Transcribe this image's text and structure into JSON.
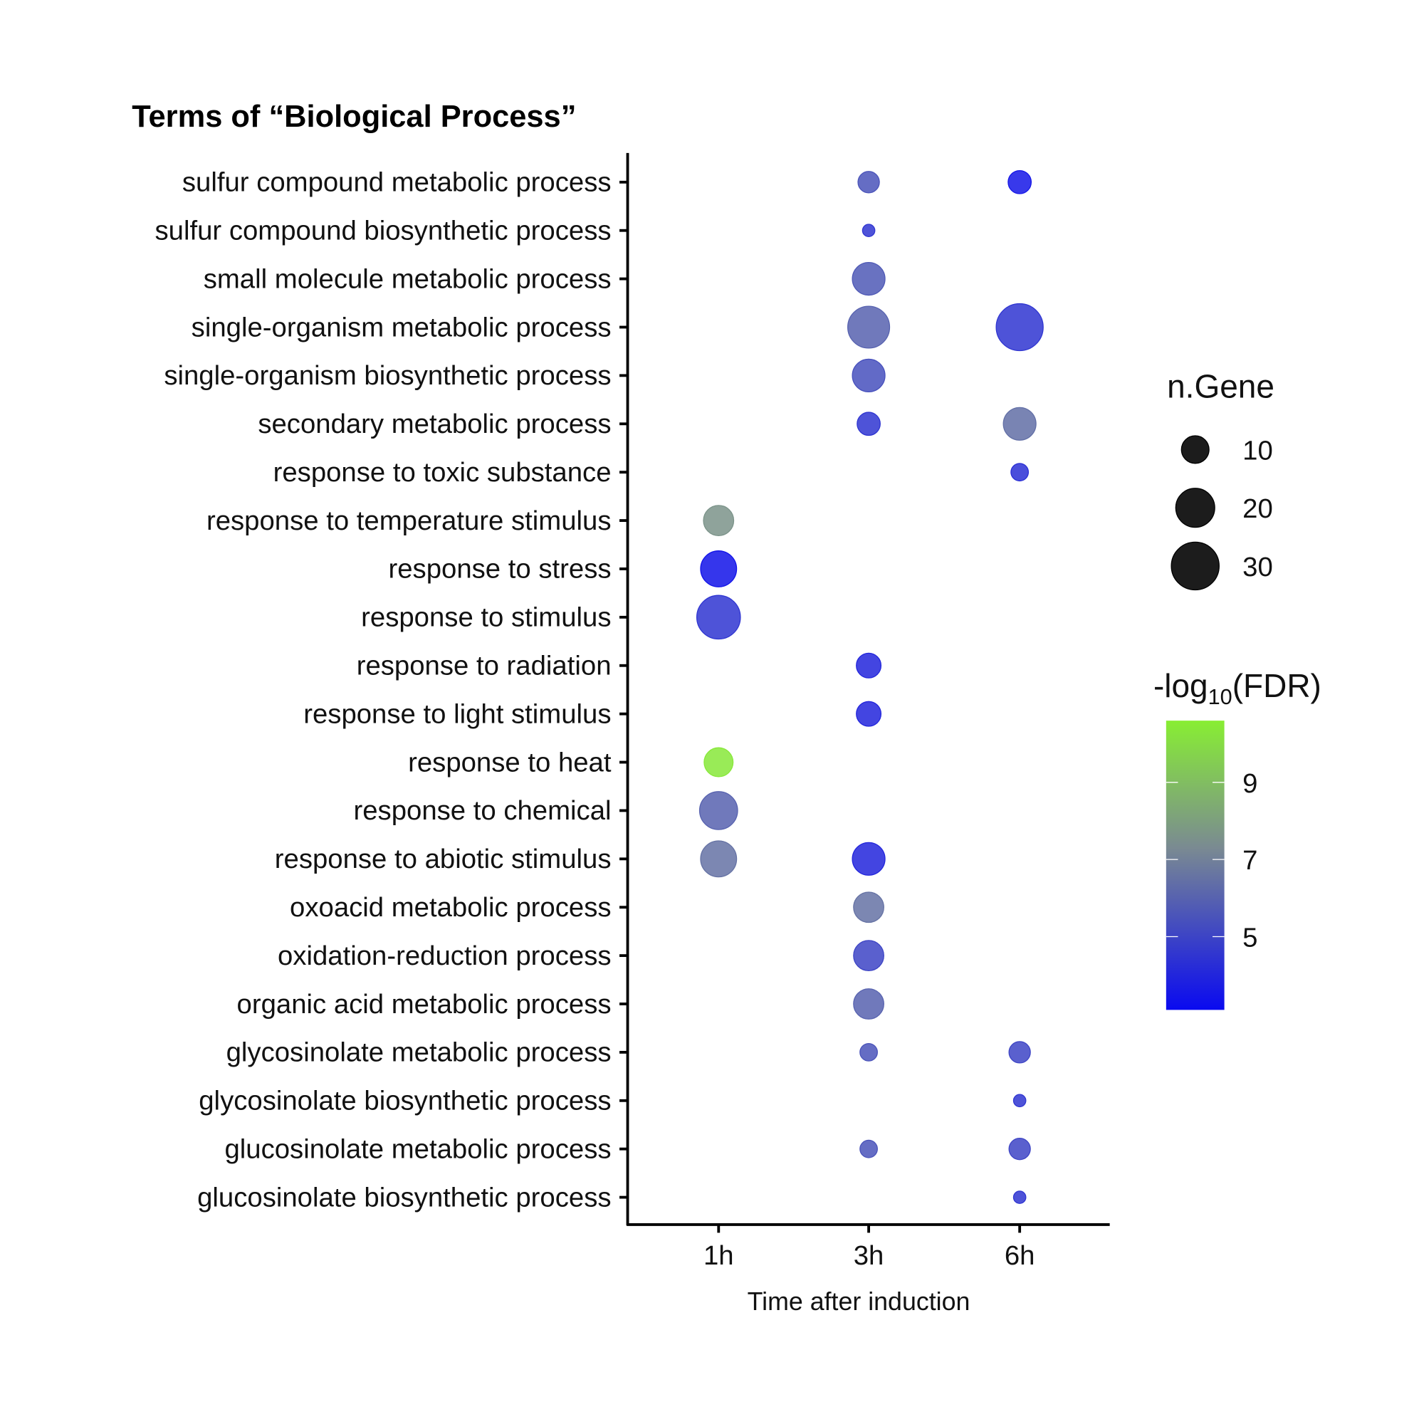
{
  "chart_data": {
    "type": "scatter",
    "title": "Terms of “Biological Process”",
    "xlabel": "Time after induction",
    "ylabel": "",
    "x_categories": [
      "1h",
      "3h",
      "6h"
    ],
    "y_categories": [
      "sulfur compound metabolic process",
      "sulfur compound biosynthetic process",
      "small molecule metabolic process",
      "single-organism metabolic process",
      "single-organism biosynthetic process",
      "secondary metabolic process",
      "response to toxic substance",
      "response to temperature stimulus",
      "response to stress",
      "response to stimulus",
      "response to radiation",
      "response to light stimulus",
      "response to heat",
      "response to chemical",
      "response to abiotic stimulus",
      "oxoacid metabolic process",
      "oxidation-reduction process",
      "organic acid metabolic process",
      "glycosinolate metabolic process",
      "glycosinolate biosynthetic process",
      "glucosinolate metabolic process",
      "glucosinolate biosynthetic process"
    ],
    "points": [
      {
        "term": "sulfur compound metabolic process",
        "time": "3h",
        "n_gene": 6,
        "neg_log10_fdr": 5.5
      },
      {
        "term": "sulfur compound metabolic process",
        "time": "6h",
        "n_gene": 7,
        "neg_log10_fdr": 3.5
      },
      {
        "term": "sulfur compound biosynthetic process",
        "time": "3h",
        "n_gene": 2,
        "neg_log10_fdr": 4.5
      },
      {
        "term": "small molecule metabolic process",
        "time": "3h",
        "n_gene": 14,
        "neg_log10_fdr": 5.7
      },
      {
        "term": "single-organism metabolic process",
        "time": "3h",
        "n_gene": 23,
        "neg_log10_fdr": 6.0
      },
      {
        "term": "single-organism metabolic process",
        "time": "6h",
        "n_gene": 29,
        "neg_log10_fdr": 4.5
      },
      {
        "term": "single-organism biosynthetic process",
        "time": "3h",
        "n_gene": 14,
        "neg_log10_fdr": 5.4
      },
      {
        "term": "secondary metabolic process",
        "time": "3h",
        "n_gene": 7,
        "neg_log10_fdr": 4.5
      },
      {
        "term": "secondary metabolic process",
        "time": "6h",
        "n_gene": 14,
        "neg_log10_fdr": 6.4
      },
      {
        "term": "response to toxic substance",
        "time": "6h",
        "n_gene": 4,
        "neg_log10_fdr": 4.3
      },
      {
        "term": "response to temperature stimulus",
        "time": "1h",
        "n_gene": 12,
        "neg_log10_fdr": 7.6
      },
      {
        "term": "response to stress",
        "time": "1h",
        "n_gene": 17,
        "neg_log10_fdr": 3.4
      },
      {
        "term": "response to stimulus",
        "time": "1h",
        "n_gene": 25,
        "neg_log10_fdr": 4.5
      },
      {
        "term": "response to radiation",
        "time": "3h",
        "n_gene": 8,
        "neg_log10_fdr": 4.0
      },
      {
        "term": "response to light stimulus",
        "time": "3h",
        "n_gene": 8,
        "neg_log10_fdr": 4.0
      },
      {
        "term": "response to heat",
        "time": "1h",
        "n_gene": 11,
        "neg_log10_fdr": 10.4
      },
      {
        "term": "response to chemical",
        "time": "1h",
        "n_gene": 19,
        "neg_log10_fdr": 6.0
      },
      {
        "term": "response to abiotic stimulus",
        "time": "1h",
        "n_gene": 17,
        "neg_log10_fdr": 6.5
      },
      {
        "term": "response to abiotic stimulus",
        "time": "3h",
        "n_gene": 14,
        "neg_log10_fdr": 4.0
      },
      {
        "term": "oxoacid metabolic process",
        "time": "3h",
        "n_gene": 12,
        "neg_log10_fdr": 6.5
      },
      {
        "term": "oxidation-reduction process",
        "time": "3h",
        "n_gene": 12,
        "neg_log10_fdr": 5.0
      },
      {
        "term": "organic acid metabolic process",
        "time": "3h",
        "n_gene": 12,
        "neg_log10_fdr": 6.0
      },
      {
        "term": "glycosinolate metabolic process",
        "time": "3h",
        "n_gene": 4,
        "neg_log10_fdr": 5.5
      },
      {
        "term": "glycosinolate metabolic process",
        "time": "6h",
        "n_gene": 6,
        "neg_log10_fdr": 5.0
      },
      {
        "term": "glycosinolate biosynthetic process",
        "time": "6h",
        "n_gene": 2,
        "neg_log10_fdr": 4.5
      },
      {
        "term": "glucosinolate metabolic process",
        "time": "3h",
        "n_gene": 4,
        "neg_log10_fdr": 5.5
      },
      {
        "term": "glucosinolate metabolic process",
        "time": "6h",
        "n_gene": 6,
        "neg_log10_fdr": 5.0
      },
      {
        "term": "glucosinolate biosynthetic process",
        "time": "6h",
        "n_gene": 2,
        "neg_log10_fdr": 4.5
      }
    ],
    "size_legend": {
      "title": "n.Gene",
      "breaks": [
        10,
        20,
        30
      ],
      "labels": [
        "10",
        "20",
        "30"
      ]
    },
    "color_legend": {
      "title_prefix": "-log",
      "title_sub": "10",
      "title_suffix": "(FDR)",
      "range": [
        3.1,
        10.6
      ],
      "breaks": [
        9,
        7,
        5
      ],
      "labels": [
        "9",
        "7",
        "5"
      ],
      "low_color": "#0a0af0",
      "mid_color": "#7a8a92",
      "high_color": "#88ee33"
    },
    "grid": false,
    "legend_position": "right"
  }
}
